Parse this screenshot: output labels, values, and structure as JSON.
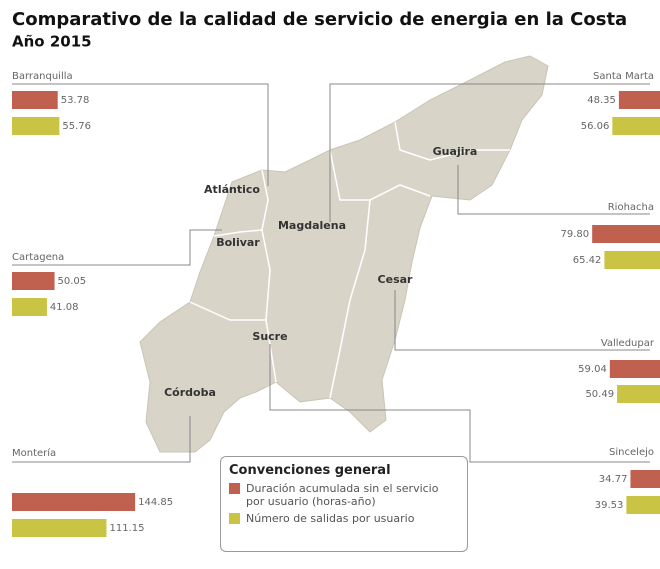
{
  "chart_data": {
    "type": "bar",
    "title": "Comparativo de la calidad de servicio de energia en la Costa",
    "subtitle": "Año 2015",
    "legend_title": "Convenciones general",
    "categories": [
      "Barranquilla",
      "Santa Marta",
      "Riohacha",
      "Cartagena",
      "Valledupar",
      "Montería",
      "Sincelejo"
    ],
    "series": [
      {
        "name": "Duración acumulada sin el servicio por usuario (horas-año)",
        "color": "#c0604f",
        "values": [
          53.78,
          48.35,
          79.8,
          50.05,
          59.04,
          144.85,
          34.77
        ],
        "value_labels": [
          "53.78",
          "48.35",
          "79.80",
          "50.05",
          "59.04",
          "144.85",
          "34.77"
        ]
      },
      {
        "name": "Número de salidas por usuario",
        "color": "#c9c443",
        "values": [
          55.76,
          56.06,
          65.42,
          41.08,
          50.49,
          111.15,
          39.53
        ],
        "value_labels": [
          "55.76",
          "56.06",
          "65.42",
          "41.08",
          "50.49",
          "111.15",
          "39.53"
        ]
      }
    ],
    "map_labels": [
      "Guajira",
      "Atlántico",
      "Magdalena",
      "Bolivar",
      "Cesar",
      "Sucre",
      "Córdoba"
    ]
  }
}
